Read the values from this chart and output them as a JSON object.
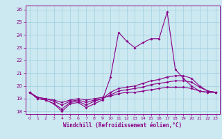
{
  "xlabel": "Windchill (Refroidissement éolien,°C)",
  "xlim": [
    -0.5,
    23.5
  ],
  "ylim": [
    17.8,
    26.3
  ],
  "yticks": [
    18,
    19,
    20,
    21,
    22,
    23,
    24,
    25,
    26
  ],
  "xticks": [
    0,
    1,
    2,
    3,
    4,
    5,
    6,
    7,
    8,
    9,
    10,
    11,
    12,
    13,
    14,
    15,
    16,
    17,
    18,
    19,
    20,
    21,
    22,
    23
  ],
  "bg_color": "#cce8f0",
  "line_color": "#880088",
  "grid_color": "#aed8e8",
  "series": {
    "line1_y": [
      19.5,
      19.0,
      18.9,
      18.6,
      18.0,
      18.6,
      18.7,
      18.3,
      18.6,
      18.9,
      20.7,
      24.2,
      23.5,
      23.0,
      23.4,
      23.7,
      23.7,
      25.8,
      21.3,
      20.6,
      20.0,
      19.6,
      19.5,
      19.5
    ],
    "line2_y": [
      19.5,
      19.0,
      18.9,
      18.6,
      18.2,
      18.7,
      18.8,
      18.5,
      18.8,
      19.0,
      19.5,
      19.8,
      19.9,
      20.0,
      20.2,
      20.4,
      20.5,
      20.7,
      20.8,
      20.8,
      20.6,
      20.0,
      19.6,
      19.5
    ],
    "line3_y": [
      19.5,
      19.1,
      19.0,
      18.8,
      18.5,
      18.8,
      18.9,
      18.7,
      18.9,
      19.0,
      19.3,
      19.6,
      19.7,
      19.8,
      19.9,
      20.1,
      20.2,
      20.3,
      20.4,
      20.4,
      20.3,
      19.9,
      19.6,
      19.5
    ],
    "line4_y": [
      19.5,
      19.1,
      19.0,
      18.9,
      18.7,
      18.9,
      19.0,
      18.9,
      19.0,
      19.1,
      19.2,
      19.4,
      19.5,
      19.5,
      19.6,
      19.7,
      19.8,
      19.9,
      19.9,
      19.9,
      19.8,
      19.6,
      19.5,
      19.5
    ]
  }
}
